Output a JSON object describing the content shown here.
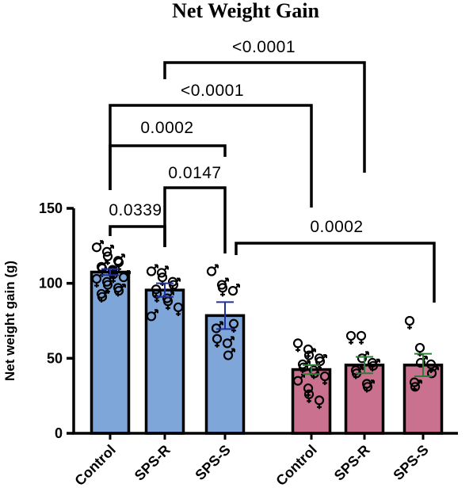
{
  "chart_data": {
    "type": "bar",
    "title": "Net Weight Gain",
    "ylabel": "Net weight gain (g)",
    "xlabel": "",
    "ylim": [
      0,
      150
    ],
    "yticks": [
      0,
      50,
      100,
      150
    ],
    "categories": [
      "Control",
      "SPS-R",
      "SPS-S",
      "Control",
      "SPS-R",
      "SPS-S"
    ],
    "colors": {
      "group1": "#7ea6d8",
      "group2": "#c9718f",
      "err_group1": "#1f2fa0",
      "err_group2": "#2f7a36",
      "axis": "#000000"
    },
    "series": [
      {
        "values": [
          107.5,
          95.5,
          78.5,
          42.5,
          45.5,
          45.5
        ],
        "sem": [
          2.0,
          4.5,
          9.0,
          3.0,
          5.5,
          7.5
        ]
      }
    ],
    "points": [
      [
        {
          "y": 124,
          "s": "m"
        },
        {
          "y": 121,
          "s": "m"
        },
        {
          "y": 118,
          "s": "f"
        },
        {
          "y": 115,
          "s": "m"
        },
        {
          "y": 114,
          "s": "f"
        },
        {
          "y": 111,
          "s": "m"
        },
        {
          "y": 110,
          "s": "f"
        },
        {
          "y": 108,
          "s": "m"
        },
        {
          "y": 106,
          "s": "f"
        },
        {
          "y": 104,
          "s": "m"
        },
        {
          "y": 103,
          "s": "f"
        },
        {
          "y": 101,
          "s": "m"
        },
        {
          "y": 99,
          "s": "f"
        },
        {
          "y": 97,
          "s": "f"
        },
        {
          "y": 95,
          "s": "m"
        },
        {
          "y": 93,
          "s": "f"
        },
        {
          "y": 91,
          "s": "m"
        },
        {
          "y": 109,
          "s": "f"
        }
      ],
      [
        {
          "y": 108,
          "s": "m"
        },
        {
          "y": 107,
          "s": "m"
        },
        {
          "y": 104,
          "s": "f"
        },
        {
          "y": 101,
          "s": "f"
        },
        {
          "y": 99,
          "s": "m"
        },
        {
          "y": 96,
          "s": "f"
        },
        {
          "y": 93,
          "s": "f"
        },
        {
          "y": 90,
          "s": "m"
        },
        {
          "y": 88,
          "s": "f"
        },
        {
          "y": 84,
          "s": "f"
        },
        {
          "y": 78,
          "s": "m"
        }
      ],
      [
        {
          "y": 108,
          "s": "m"
        },
        {
          "y": 99,
          "s": "m"
        },
        {
          "y": 97,
          "s": "f"
        },
        {
          "y": 95,
          "s": "m"
        },
        {
          "y": 73,
          "s": "f"
        },
        {
          "y": 70,
          "s": "m"
        },
        {
          "y": 63,
          "s": "f"
        },
        {
          "y": 60,
          "s": "m"
        },
        {
          "y": 52,
          "s": "m"
        }
      ],
      [
        {
          "y": 60,
          "s": "f"
        },
        {
          "y": 56,
          "s": "f"
        },
        {
          "y": 52,
          "s": "m"
        },
        {
          "y": 50,
          "s": "f"
        },
        {
          "y": 48,
          "s": "m"
        },
        {
          "y": 46,
          "s": "f"
        },
        {
          "y": 44,
          "s": "m"
        },
        {
          "y": 42,
          "s": "f"
        },
        {
          "y": 40,
          "s": "m"
        },
        {
          "y": 38,
          "s": "f"
        },
        {
          "y": 35,
          "s": "m"
        },
        {
          "y": 30,
          "s": "f"
        },
        {
          "y": 26,
          "s": "f"
        },
        {
          "y": 22,
          "s": "f"
        }
      ],
      [
        {
          "y": 65,
          "s": "f"
        },
        {
          "y": 65,
          "s": "f"
        },
        {
          "y": 50,
          "s": "m"
        },
        {
          "y": 47,
          "s": "f"
        },
        {
          "y": 45,
          "s": "m"
        },
        {
          "y": 42,
          "s": "f"
        },
        {
          "y": 40,
          "s": "m"
        },
        {
          "y": 33,
          "s": "f"
        },
        {
          "y": 31,
          "s": "m"
        }
      ],
      [
        {
          "y": 75,
          "s": "f"
        },
        {
          "y": 57,
          "s": "f"
        },
        {
          "y": 47,
          "s": "m"
        },
        {
          "y": 46,
          "s": "f"
        },
        {
          "y": 40,
          "s": "m"
        },
        {
          "y": 34,
          "s": "f"
        },
        {
          "y": 31,
          "s": "m"
        }
      ]
    ],
    "comparisons": [
      {
        "from": 0,
        "to": 1,
        "label": "0.0339"
      },
      {
        "from": 1,
        "to": 2,
        "label": "0.0147"
      },
      {
        "from": 0,
        "to": 2,
        "label": "0.0002"
      },
      {
        "from": 0,
        "to": 3,
        "label": "<0.0001"
      },
      {
        "from": 1,
        "to": 4,
        "label": "<0.0001"
      },
      {
        "from": 2,
        "to": 5,
        "label": "0.0002"
      }
    ]
  }
}
